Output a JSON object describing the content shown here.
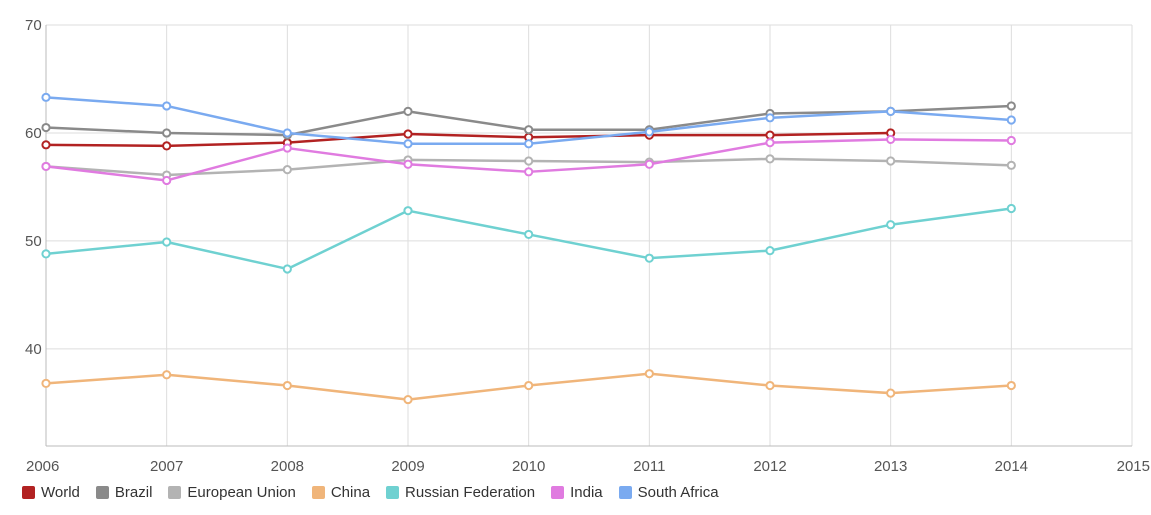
{
  "chart_data": {
    "type": "line",
    "title": "",
    "xlabel": "",
    "ylabel": "",
    "xlim": [
      2006,
      2015
    ],
    "ylim": [
      31,
      70
    ],
    "x_ticks": [
      "2006",
      "2007",
      "2008",
      "2009",
      "2010",
      "2011",
      "2012",
      "2013",
      "2014",
      "2015"
    ],
    "y_ticks": [
      "40",
      "50",
      "60",
      "70"
    ],
    "grid": true,
    "legend_position": "bottom",
    "series": [
      {
        "name": "World",
        "color": "#b22222",
        "x": [
          2006,
          2007,
          2008,
          2009,
          2010,
          2011,
          2012,
          2013
        ],
        "y": [
          58.9,
          58.8,
          59.1,
          59.9,
          59.6,
          59.8,
          59.8,
          60.0
        ]
      },
      {
        "name": "Brazil",
        "color": "#8a8a8a",
        "x": [
          2006,
          2007,
          2008,
          2009,
          2010,
          2011,
          2012,
          2013,
          2014
        ],
        "y": [
          60.5,
          60.0,
          59.8,
          62.0,
          60.3,
          60.3,
          61.8,
          62.0,
          62.5
        ]
      },
      {
        "name": "European Union",
        "color": "#b3b3b3",
        "x": [
          2006,
          2007,
          2008,
          2009,
          2010,
          2011,
          2012,
          2013,
          2014
        ],
        "y": [
          56.9,
          56.1,
          56.6,
          57.5,
          57.4,
          57.3,
          57.6,
          57.4,
          57.0
        ]
      },
      {
        "name": "China",
        "color": "#f0b57a",
        "x": [
          2006,
          2007,
          2008,
          2009,
          2010,
          2011,
          2012,
          2013,
          2014
        ],
        "y": [
          36.8,
          37.6,
          36.6,
          35.3,
          36.6,
          37.7,
          36.6,
          35.9,
          36.6
        ]
      },
      {
        "name": "Russian Federation",
        "color": "#6fd1d1",
        "x": [
          2006,
          2007,
          2008,
          2009,
          2010,
          2011,
          2012,
          2013,
          2014
        ],
        "y": [
          48.8,
          49.9,
          47.4,
          52.8,
          50.6,
          48.4,
          49.1,
          51.5,
          53.0
        ]
      },
      {
        "name": "India",
        "color": "#e07be0",
        "x": [
          2006,
          2007,
          2008,
          2009,
          2010,
          2011,
          2012,
          2013,
          2014
        ],
        "y": [
          56.9,
          55.6,
          58.6,
          57.1,
          56.4,
          57.1,
          59.1,
          59.4,
          59.3
        ]
      },
      {
        "name": "South Africa",
        "color": "#7aaaf0",
        "x": [
          2006,
          2007,
          2008,
          2009,
          2010,
          2011,
          2012,
          2013,
          2014
        ],
        "y": [
          63.3,
          62.5,
          60.0,
          59.0,
          59.0,
          60.1,
          61.4,
          62.0,
          61.2
        ]
      }
    ]
  }
}
